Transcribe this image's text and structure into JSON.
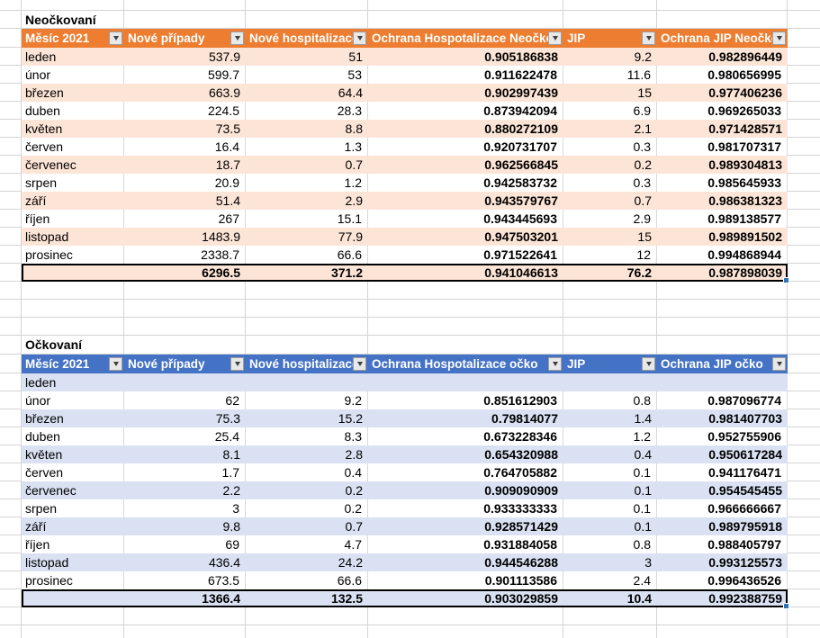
{
  "sheet": {
    "tables": [
      {
        "title": "Neočkovaní",
        "header_bg": "#ED7D31",
        "band_bg": "#FCE4D6",
        "columns": [
          "Měsíc 2021",
          "Nové případy",
          "Nové hospitalizace",
          "Ochrana Hospotalizace Neočko",
          "JIP",
          "Ochrana JIP Neočko"
        ],
        "rows": [
          [
            "leden",
            "537.9",
            "51",
            "0.905186838",
            "9.2",
            "0.982896449"
          ],
          [
            "únor",
            "599.7",
            "53",
            "0.911622478",
            "11.6",
            "0.980656995"
          ],
          [
            "březen",
            "663.9",
            "64.4",
            "0.902997439",
            "15",
            "0.977406236"
          ],
          [
            "duben",
            "224.5",
            "28.3",
            "0.873942094",
            "6.9",
            "0.969265033"
          ],
          [
            "květen",
            "73.5",
            "8.8",
            "0.880272109",
            "2.1",
            "0.971428571"
          ],
          [
            "červen",
            "16.4",
            "1.3",
            "0.920731707",
            "0.3",
            "0.981707317"
          ],
          [
            "červenec",
            "18.7",
            "0.7",
            "0.962566845",
            "0.2",
            "0.989304813"
          ],
          [
            "srpen",
            "20.9",
            "1.2",
            "0.942583732",
            "0.3",
            "0.985645933"
          ],
          [
            "září",
            "51.4",
            "2.9",
            "0.943579767",
            "0.7",
            "0.986381323"
          ],
          [
            "říjen",
            "267",
            "15.1",
            "0.943445693",
            "2.9",
            "0.989138577"
          ],
          [
            "listopad",
            "1483.9",
            "77.9",
            "0.947503201",
            "15",
            "0.989891502"
          ],
          [
            "prosinec",
            "2338.7",
            "66.6",
            "0.971522641",
            "12",
            "0.994868944"
          ]
        ],
        "totals": [
          "",
          "6296.5",
          "371.2",
          "0.941046613",
          "76.2",
          "0.987898039"
        ]
      },
      {
        "title": "Očkovaní",
        "header_bg": "#4472C4",
        "band_bg": "#D9E1F2",
        "columns": [
          "Měsíc 2021",
          "Nové případy",
          "Nové hospitalizace",
          "Ochrana Hospotalizace očko",
          "JIP",
          "Ochrana JIP očko"
        ],
        "rows": [
          [
            "leden",
            "",
            "",
            "",
            "",
            ""
          ],
          [
            "únor",
            "62",
            "9.2",
            "0.851612903",
            "0.8",
            "0.987096774"
          ],
          [
            "březen",
            "75.3",
            "15.2",
            "0.79814077",
            "1.4",
            "0.981407703"
          ],
          [
            "duben",
            "25.4",
            "8.3",
            "0.673228346",
            "1.2",
            "0.952755906"
          ],
          [
            "květen",
            "8.1",
            "2.8",
            "0.654320988",
            "0.4",
            "0.950617284"
          ],
          [
            "červen",
            "1.7",
            "0.4",
            "0.764705882",
            "0.1",
            "0.941176471"
          ],
          [
            "červenec",
            "2.2",
            "0.2",
            "0.909090909",
            "0.1",
            "0.954545455"
          ],
          [
            "srpen",
            "3",
            "0.2",
            "0.933333333",
            "0.1",
            "0.966666667"
          ],
          [
            "září",
            "9.8",
            "0.7",
            "0.928571429",
            "0.1",
            "0.989795918"
          ],
          [
            "říjen",
            "69",
            "4.7",
            "0.931884058",
            "0.8",
            "0.988405797"
          ],
          [
            "listopad",
            "436.4",
            "24.2",
            "0.944546288",
            "3",
            "0.993125573"
          ],
          [
            "prosinec",
            "673.5",
            "66.6",
            "0.901113586",
            "2.4",
            "0.996436526"
          ]
        ],
        "totals": [
          "",
          "1366.4",
          "132.5",
          "0.903029859",
          "10.4",
          "0.992388759"
        ]
      }
    ],
    "icons": {
      "filter_dropdown": "triangle-down-icon"
    }
  }
}
